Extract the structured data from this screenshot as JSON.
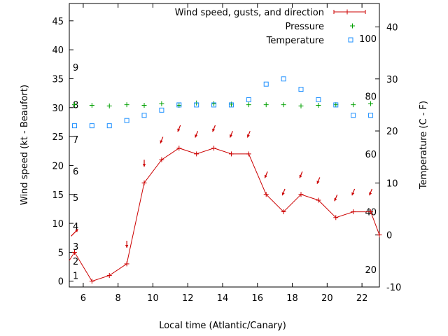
{
  "chart_data": {
    "type": "line",
    "xlabel": "Local time (Atlantic/Canary)",
    "xlim": [
      5.2,
      23
    ],
    "x_ticks": [
      "6",
      "8",
      "10",
      "12",
      "14",
      "16",
      "18",
      "20",
      "22"
    ],
    "left_axis": {
      "label": "Wind speed (kt - Beaufort)",
      "ylim": [
        -1,
        48
      ],
      "ticks": [
        "0",
        "5",
        "10",
        "15",
        "20",
        "25",
        "30",
        "35",
        "40",
        "45"
      ],
      "beaufort_labels": [
        {
          "label": "1",
          "kt": 1
        },
        {
          "label": "2",
          "kt": 3.5
        },
        {
          "label": "3",
          "kt": 6
        },
        {
          "label": "4",
          "kt": 9.5
        },
        {
          "label": "5",
          "kt": 14.5
        },
        {
          "label": "6",
          "kt": 19
        },
        {
          "label": "7",
          "kt": 24.5
        },
        {
          "label": "8",
          "kt": 30.5
        },
        {
          "label": "9",
          "kt": 37
        }
      ]
    },
    "right_axis": {
      "label": "Temperature (C - F)",
      "ylim": [
        -10,
        44.5
      ],
      "ticks": [
        "-10",
        "0",
        "10",
        "20",
        "30",
        "40"
      ],
      "fahrenheit_labels": [
        {
          "label": "20",
          "f": 20
        },
        {
          "label": "40",
          "f": 40
        },
        {
          "label": "60",
          "f": 60
        },
        {
          "label": "80",
          "f": 80
        },
        {
          "label": "100",
          "f": 100
        }
      ]
    },
    "legend_position": "top-right",
    "series": [
      {
        "name": "Wind speed, gusts, and direction",
        "axis": "left",
        "color": "#cc0000",
        "points": [
          [
            5.5,
            5
          ],
          [
            6.5,
            0
          ],
          [
            7.5,
            1
          ],
          [
            8.5,
            3
          ],
          [
            9.5,
            17
          ],
          [
            10.5,
            21
          ],
          [
            11.5,
            23
          ],
          [
            12.5,
            22
          ],
          [
            13.5,
            23
          ],
          [
            14.5,
            22
          ],
          [
            15.5,
            22
          ],
          [
            16.5,
            15
          ],
          [
            17.5,
            12
          ],
          [
            18.5,
            15
          ],
          [
            19.5,
            14
          ],
          [
            20.5,
            11
          ],
          [
            21.5,
            12
          ],
          [
            22.5,
            12
          ],
          [
            23,
            8
          ]
        ],
        "direction_arrows": [
          [
            5.5,
            "NE"
          ],
          [
            8.5,
            "S"
          ],
          [
            9.5,
            "S"
          ],
          [
            10.5,
            "SSW"
          ],
          [
            11.5,
            "SSW"
          ],
          [
            12.5,
            "SSW"
          ],
          [
            13.5,
            "SSW"
          ],
          [
            14.5,
            "SSW"
          ],
          [
            15.5,
            "SSW"
          ],
          [
            16.5,
            "SSW"
          ],
          [
            17.5,
            "SSW"
          ],
          [
            18.5,
            "SSW"
          ],
          [
            19.5,
            "SSW"
          ],
          [
            20.5,
            "SSW"
          ],
          [
            21.5,
            "SSW"
          ],
          [
            22.5,
            "SSW"
          ]
        ]
      },
      {
        "name": "Pressure",
        "axis": "none",
        "color": "#00a000",
        "marker": "+",
        "points": [
          [
            5.5,
            30.5
          ],
          [
            6.5,
            30.4
          ],
          [
            7.5,
            30.3
          ],
          [
            8.5,
            30.5
          ],
          [
            9.5,
            30.4
          ],
          [
            10.5,
            30.7
          ],
          [
            11.5,
            30.4
          ],
          [
            12.5,
            30.8
          ],
          [
            13.5,
            30.7
          ],
          [
            14.5,
            30.6
          ],
          [
            15.5,
            30.5
          ],
          [
            16.5,
            30.5
          ],
          [
            17.5,
            30.5
          ],
          [
            18.5,
            30.3
          ],
          [
            19.5,
            30.4
          ],
          [
            20.5,
            30.5
          ],
          [
            21.5,
            30.5
          ],
          [
            22.5,
            30.7
          ]
        ]
      },
      {
        "name": "Temperature",
        "axis": "right",
        "color": "#1e90ff",
        "marker": "square",
        "points": [
          [
            5.5,
            21
          ],
          [
            6.5,
            21
          ],
          [
            7.5,
            21
          ],
          [
            8.5,
            22
          ],
          [
            9.5,
            23
          ],
          [
            10.5,
            24
          ],
          [
            11.5,
            25
          ],
          [
            12.5,
            25
          ],
          [
            13.5,
            25
          ],
          [
            14.5,
            25
          ],
          [
            15.5,
            26
          ],
          [
            16.5,
            29
          ],
          [
            17.5,
            30
          ],
          [
            18.5,
            28
          ],
          [
            19.5,
            26
          ],
          [
            20.5,
            25
          ],
          [
            21.5,
            23
          ],
          [
            22.5,
            23
          ]
        ]
      }
    ]
  }
}
